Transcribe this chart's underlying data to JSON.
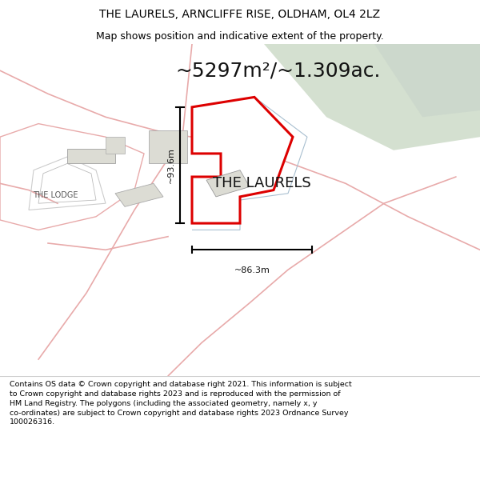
{
  "title_line1": "THE LAURELS, ARNCLIFFE RISE, OLDHAM, OL4 2LZ",
  "title_line2": "Map shows position and indicative extent of the property.",
  "area_text": "~5297m²/~1.309ac.",
  "label_main": "THE LAURELS",
  "label_lodge": "THE LODGE",
  "dim_vertical": "~93.6m",
  "dim_horizontal": "~86.3m",
  "footer_text": "Contains OS data © Crown copyright and database right 2021. This information is subject to Crown copyright and database rights 2023 and is reproduced with the permission of HM Land Registry. The polygons (including the associated geometry, namely x, y co-ordinates) are subject to Crown copyright and database rights 2023 Ordnance Survey 100026316.",
  "bg_color": "#ffffff",
  "map_bg": "#f7f7f4",
  "road_color": "#e8aaaa",
  "red_outline_color": "#dd0000",
  "blue_outline_color": "#a8bfd0",
  "green_area_color": "#d4e0d0",
  "green_area2_color": "#ccd8cc",
  "building_fill": "#dcdcd4",
  "building_outline": "#aaaaaa",
  "title_fontsize": 10,
  "subtitle_fontsize": 9,
  "area_fontsize": 18,
  "label_fontsize": 13,
  "lodge_fontsize": 7,
  "dim_fontsize": 8,
  "footer_fontsize": 6.8
}
